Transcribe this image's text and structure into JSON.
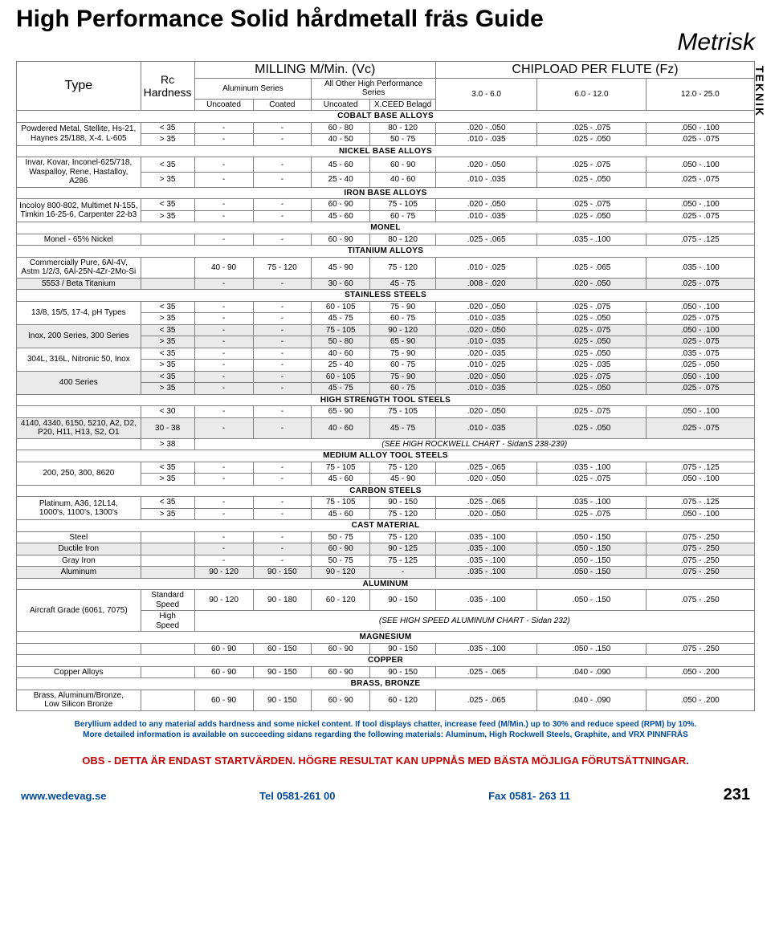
{
  "page": {
    "title": "High Performance Solid hårdmetall fräs Guide",
    "subtitle": "Metrisk",
    "sidebar": "TEKNIK",
    "pnum": "231"
  },
  "header": {
    "type": "Type",
    "rc": "Rc Hardness",
    "mill": "MILLING M/Min. (Vc)",
    "chip": "CHIPLOAD PER FLUTE (Fz)",
    "al_series": "Aluminum Series",
    "all_other": "All Other High Performance Series",
    "ranges": [
      "3.0 - 6.0",
      "6.0 - 12.0",
      "12.0 - 25.0"
    ],
    "cols_lvl3": [
      "Uncoated",
      "Coated",
      "Uncoated",
      "X.CEED Belagd"
    ]
  },
  "rows": [
    {
      "sect": "COBALT BASE ALLOYS"
    },
    {
      "t": "Powdered Metal, Stellite, Hs-21,",
      "sub": "Haynes 25/188, X-4. L-605",
      "rc": [
        "< 35",
        "> 35"
      ],
      "a": [
        "-",
        "-"
      ],
      "b": [
        "-",
        "-"
      ],
      "c": [
        "60 - 80",
        "40 - 50"
      ],
      "d": [
        "80 - 120",
        "50 - 75"
      ],
      "e": [
        ".020 - .050",
        ".010 - .035"
      ],
      "f": [
        ".025 - .075",
        ".025 - .050"
      ],
      "g": [
        ".050 - .100",
        ".025 - .075"
      ]
    },
    {
      "sect": "NICKEL BASE ALLOYS"
    },
    {
      "t": "Invar, Kovar, Inconel-625/718,",
      "sub": "Waspalloy, Rene, Hastalloy, A286",
      "rc": [
        "< 35",
        "> 35"
      ],
      "a": [
        "-",
        "-"
      ],
      "b": [
        "-",
        "-"
      ],
      "c": [
        "45 - 60",
        "25 - 40"
      ],
      "d": [
        "60 - 90",
        "40 - 60"
      ],
      "e": [
        ".020 - .050",
        ".010 - .035"
      ],
      "f": [
        ".025 - .075",
        ".025 - .050"
      ],
      "g": [
        ".050 - .100",
        ".025 - .075"
      ]
    },
    {
      "sect": "IRON BASE ALLOYS"
    },
    {
      "t": "Incoloy 800-802, Multimet N-155,",
      "sub": "Timkin 16-25-6, Carpenter 22-b3",
      "rc": [
        "< 35",
        "> 35"
      ],
      "a": [
        "-",
        "-"
      ],
      "b": [
        "-",
        "-"
      ],
      "c": [
        "60 - 90",
        "45 - 60"
      ],
      "d": [
        "75 - 105",
        "60 - 75"
      ],
      "e": [
        ".020 - .050",
        ".010 - .035"
      ],
      "f": [
        ".025 - .075",
        ".025 - .050"
      ],
      "g": [
        ".050 - .100",
        ".025 - .075"
      ]
    },
    {
      "sect": "MONEL"
    },
    {
      "single": true,
      "t": "Monel - 65% Nickel",
      "rc": "",
      "a": "-",
      "b": "-",
      "c": "60 - 90",
      "d": "80 - 120",
      "e": ".025 - .065",
      "f": ".035 - .100",
      "g": ".075 - .125"
    },
    {
      "sect": "TITANIUM ALLOYS"
    },
    {
      "single": true,
      "t": "Commercially Pure, 6Al-4V,\nAstm 1/2/3, 6Al-25N-4Zr-2Mo-Si",
      "rc": "",
      "a": "40 - 90",
      "b": "75 - 120",
      "c": "45 - 90",
      "d": "75 - 120",
      "e": ".010 - .025",
      "f": ".025 - .065",
      "g": ".035 - .100"
    },
    {
      "single": true,
      "shade": true,
      "t": "5553 / Beta Titanium",
      "rc": "",
      "a": "-",
      "b": "-",
      "c": "30 - 60",
      "d": "45 - 75",
      "e": ".008 - .020",
      "f": ".020 - .050",
      "g": ".025 - .075"
    },
    {
      "sect": "STAINLESS STEELS"
    },
    {
      "t": "13/8, 15/5, 17-4, pH Types",
      "rc": [
        "< 35",
        "> 35"
      ],
      "a": [
        "-",
        "-"
      ],
      "b": [
        "-",
        "-"
      ],
      "c": [
        "60 - 105",
        "45 - 75"
      ],
      "d": [
        "75 - 90",
        "60 - 75"
      ],
      "e": [
        ".020 - .050",
        ".010 - .035"
      ],
      "f": [
        ".025 - .075",
        ".025 - .050"
      ],
      "g": [
        ".050 - .100",
        ".025 - .075"
      ]
    },
    {
      "t": "Inox, 200 Series, 300 Series",
      "shade": true,
      "rc": [
        "< 35",
        "> 35"
      ],
      "a": [
        "-",
        "-"
      ],
      "b": [
        "-",
        "-"
      ],
      "c": [
        "75 - 105",
        "50 - 80"
      ],
      "d": [
        "90 - 120",
        "65 - 90"
      ],
      "e": [
        ".020 - .050",
        ".010 - .035"
      ],
      "f": [
        ".025 - .075",
        ".025 - .050"
      ],
      "g": [
        ".050 - .100",
        ".025 - .075"
      ]
    },
    {
      "t": "304L, 316L, Nitronic 50, Inox",
      "rc": [
        "< 35",
        "> 35"
      ],
      "a": [
        "-",
        "-"
      ],
      "b": [
        "-",
        "-"
      ],
      "c": [
        "40 - 60",
        "25 - 40"
      ],
      "d": [
        "75 - 90",
        "60 - 75"
      ],
      "e": [
        ".020 - .035",
        ".010 - .025"
      ],
      "f": [
        ".025 - .050",
        ".025 - .035"
      ],
      "g": [
        ".035 - .075",
        ".025 - .050"
      ]
    },
    {
      "t": "400 Series",
      "shade": true,
      "rc": [
        "< 35",
        "> 35"
      ],
      "a": [
        "-",
        "-"
      ],
      "b": [
        "-",
        "-"
      ],
      "c": [
        "60 - 105",
        "45 - 75"
      ],
      "d": [
        "75 - 90",
        "60 - 75"
      ],
      "e": [
        ".020 - .050",
        ".010 - .035"
      ],
      "f": [
        ".025 - .075",
        ".025 - .050"
      ],
      "g": [
        ".050 - .100",
        ".025 - .075"
      ]
    },
    {
      "sect": "HIGH STRENGTH TOOL STEELS"
    },
    {
      "single": true,
      "t": "",
      "rc": "< 30",
      "a": "-",
      "b": "-",
      "c": "65 - 90",
      "d": "75 - 105",
      "e": ".020 - .050",
      "f": ".025 - .075",
      "g": ".050 - .100"
    },
    {
      "single": true,
      "shade": true,
      "t": "4140, 4340, 6150, 5210, A2, D2,\nP20, H11, H13, S2, O1",
      "rc": "30 - 38",
      "a": "-",
      "b": "-",
      "c": "40 - 60",
      "d": "45 - 75",
      "e": ".010 - .035",
      "f": ".025 - .050",
      "g": ".025 - .075"
    },
    {
      "single": true,
      "t": "",
      "rc": "> 38",
      "span": "(SEE HIGH ROCKWELL CHART - SidanS 238-239)"
    },
    {
      "sect": "MEDIUM ALLOY TOOL STEELS"
    },
    {
      "t": "200, 250, 300, 8620",
      "rc": [
        "< 35",
        "> 35"
      ],
      "a": [
        "-",
        "-"
      ],
      "b": [
        "-",
        "-"
      ],
      "c": [
        "75 - 105",
        "45 - 60"
      ],
      "d": [
        "75 - 120",
        "45 - 90"
      ],
      "e": [
        ".025 - .065",
        ".020 - .050"
      ],
      "f": [
        ".035 - .100",
        ".025 - .075"
      ],
      "g": [
        ".075 - .125",
        ".050 - .100"
      ]
    },
    {
      "sect": "CARBON STEELS"
    },
    {
      "t": "Platinum, A36, 12L14,",
      "sub": "1000's, 1100's, 1300's",
      "rc": [
        "< 35",
        "> 35"
      ],
      "a": [
        "-",
        "-"
      ],
      "b": [
        "-",
        "-"
      ],
      "c": [
        "75 - 105",
        "45 - 60"
      ],
      "d": [
        "90 - 150",
        "75 - 120"
      ],
      "e": [
        ".025 - .065",
        ".020 - .050"
      ],
      "f": [
        ".035 - .100",
        ".025 - .075"
      ],
      "g": [
        ".075 - .125",
        ".050 - .100"
      ]
    },
    {
      "sect": "CAST MATERIAL"
    },
    {
      "single": true,
      "t": "Steel",
      "rc": "",
      "a": "-",
      "b": "-",
      "c": "50 - 75",
      "d": "75 - 120",
      "e": ".035 - .100",
      "f": ".050 - .150",
      "g": ".075 - .250"
    },
    {
      "single": true,
      "shade": true,
      "t": "Ductile Iron",
      "rc": "",
      "a": "-",
      "b": "-",
      "c": "60 - 90",
      "d": "90 - 125",
      "e": ".035 - .100",
      "f": ".050 - .150",
      "g": ".075 - .250"
    },
    {
      "single": true,
      "t": "Gray Iron",
      "rc": "",
      "a": "-",
      "b": "-",
      "c": "50 - 75",
      "d": "75 - 125",
      "e": ".035 - .100",
      "f": ".050 - .150",
      "g": ".075 - .250"
    },
    {
      "single": true,
      "shade": true,
      "t": "Aluminum",
      "rc": "",
      "a": "90 - 120",
      "b": "90 - 150",
      "c": "90 - 120",
      "d": "-",
      "e": ".035 - .100",
      "f": ".050 - .150",
      "g": ".075 - .250"
    },
    {
      "sect": "ALUMINUM"
    },
    {
      "t": "Aircraft Grade (6061, 7075)",
      "rc": [
        "Standard\nSpeed",
        "High\nSpeed"
      ],
      "a": [
        "90 - 120",
        ""
      ],
      "b": [
        "90 - 180",
        ""
      ],
      "c": [
        "60 - 120",
        ""
      ],
      "d": [
        "90 - 150",
        ""
      ],
      "e": [
        ".035 - .100",
        ""
      ],
      "f": [
        ".050 - .150",
        ""
      ],
      "g": [
        ".075 - .250",
        ""
      ],
      "row1span": "(SEE HIGH SPEED ALUMINUM CHART - Sidan 232)"
    },
    {
      "sect": "MAGNESIUM"
    },
    {
      "single": true,
      "t": "",
      "rc": "",
      "a": "60 - 90",
      "b": "60 - 150",
      "c": "60 - 90",
      "d": "90 - 150",
      "e": ".035 - .100",
      "f": ".050 - .150",
      "g": ".075 - .250"
    },
    {
      "sect": "COPPER"
    },
    {
      "single": true,
      "t": "Copper Alloys",
      "rc": "",
      "a": "60 - 90",
      "b": "90 - 150",
      "c": "60 - 90",
      "d": "90 - 150",
      "e": ".025 - .065",
      "f": ".040 - .090",
      "g": ".050 - .200"
    },
    {
      "sect": "BRASS, BRONZE"
    },
    {
      "single": true,
      "t": "Brass, Aluminum/Bronze,\nLow Silicon Bronze",
      "rc": "",
      "a": "60 - 90",
      "b": "90 - 150",
      "c": "60 - 90",
      "d": "60 - 120",
      "e": ".025 - .065",
      "f": ".040 - .090",
      "g": ".050 - .200"
    }
  ],
  "footnote": "Beryllium added to any material adds hardness and some nickel content. If tool displays chatter, increase feed (M/Min.) up to 30% and reduce speed (RPM) by 10%.\nMore detailed information is available on succeeding sidans regarding the following materials: Aluminum, High Rockwell Steels, Graphite, and VRX PINNFRÄS",
  "warn": "OBS - DETTA ÄR ENDAST STARTVÄRDEN. HÖGRE RESULTAT KAN UPPNÅS MED BÄSTA MÖJLIGA FÖRUTSÄTTNINGAR.",
  "footer": {
    "url": "www.wedevag.se",
    "tel": "Tel 0581-261 00",
    "fax": "Fax 0581- 263 11"
  },
  "colors": {
    "blue": "#014a99",
    "red": "#c10606",
    "shade": "#eaeaea",
    "border": "#808080"
  }
}
